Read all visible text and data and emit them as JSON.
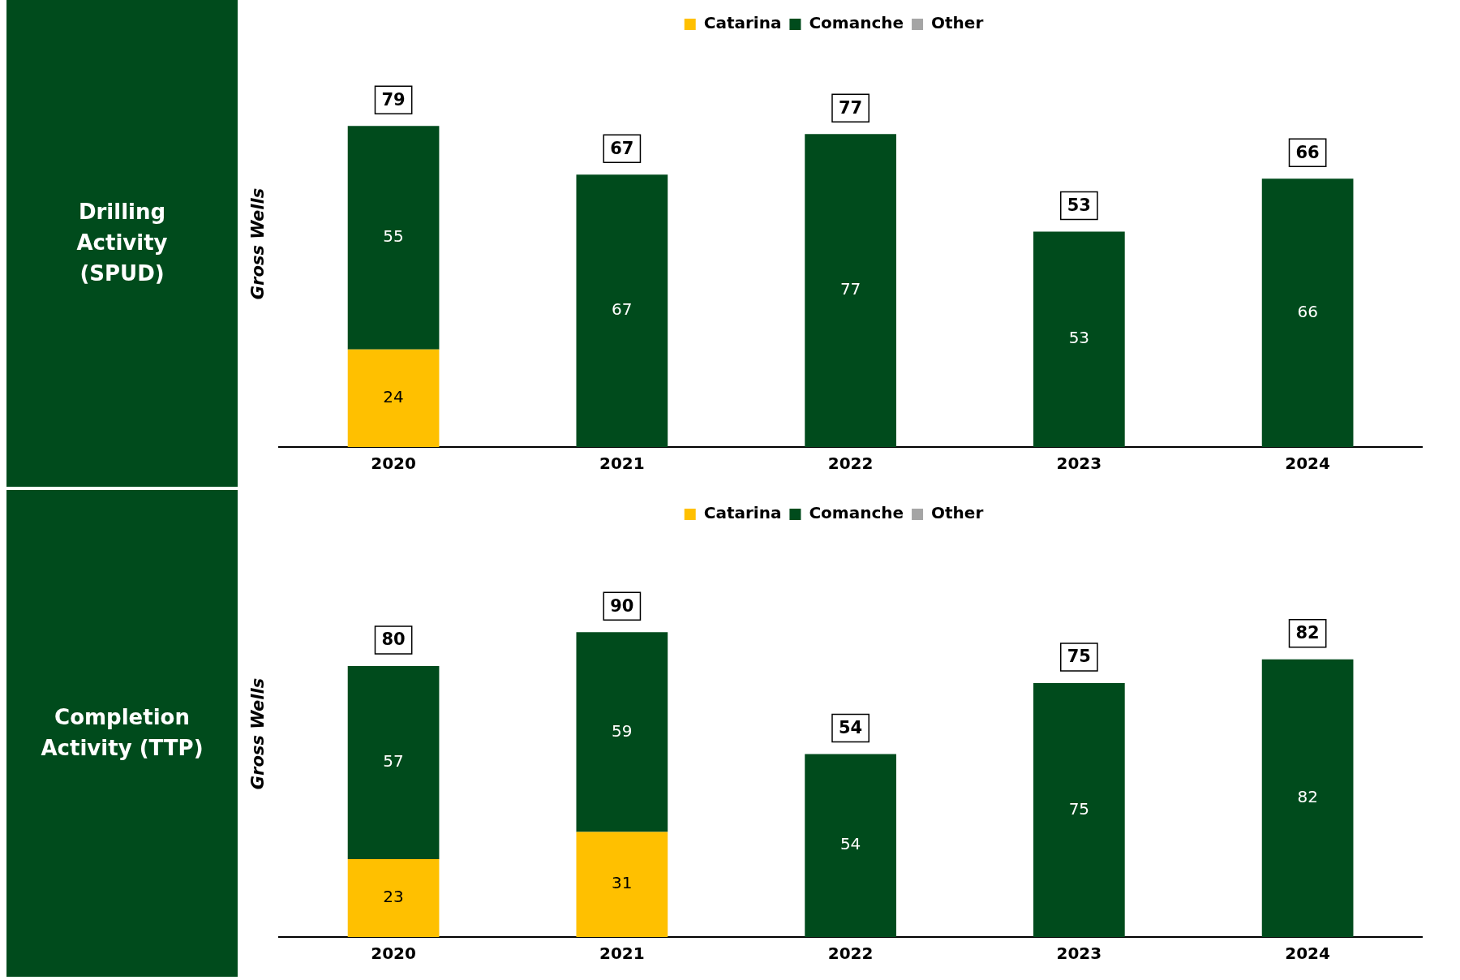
{
  "chart_data": [
    {
      "type": "bar",
      "title": "Drilling Activity (SPUD)",
      "ylabel": "Gross Wells",
      "categories": [
        "2020",
        "2021",
        "2022",
        "2023",
        "2024"
      ],
      "stacked": true,
      "data_labels": true,
      "legend": "top",
      "grid": false,
      "tick_labels": "x",
      "series": [
        {
          "name": "Catarina",
          "color": "#ffc000",
          "values": [
            24,
            null,
            null,
            null,
            null
          ]
        },
        {
          "name": "Comanche",
          "color": "#004b1c",
          "values": [
            55,
            67,
            77,
            53,
            66
          ]
        },
        {
          "name": "Other",
          "color": "#a5a5a5",
          "values": [
            null,
            null,
            null,
            null,
            null
          ]
        }
      ],
      "totals": [
        "79",
        "67",
        "77",
        "53",
        "66"
      ]
    },
    {
      "type": "bar",
      "title": "Completion Activity (TTP)",
      "ylabel": "Gross Wells",
      "categories": [
        "2020",
        "2021",
        "2022",
        "2023",
        "2024"
      ],
      "stacked": true,
      "data_labels": true,
      "legend": "top",
      "grid": false,
      "tick_labels": "x",
      "series": [
        {
          "name": "Catarina",
          "color": "#ffc000",
          "values": [
            23,
            31,
            null,
            null,
            null
          ]
        },
        {
          "name": "Comanche",
          "color": "#004b1c",
          "values": [
            57,
            59,
            54,
            75,
            82
          ]
        },
        {
          "name": "Other",
          "color": "#a5a5a5",
          "values": [
            null,
            null,
            null,
            null,
            null
          ]
        }
      ],
      "totals": [
        "80",
        "90",
        "54",
        "75",
        "82"
      ]
    }
  ]
}
